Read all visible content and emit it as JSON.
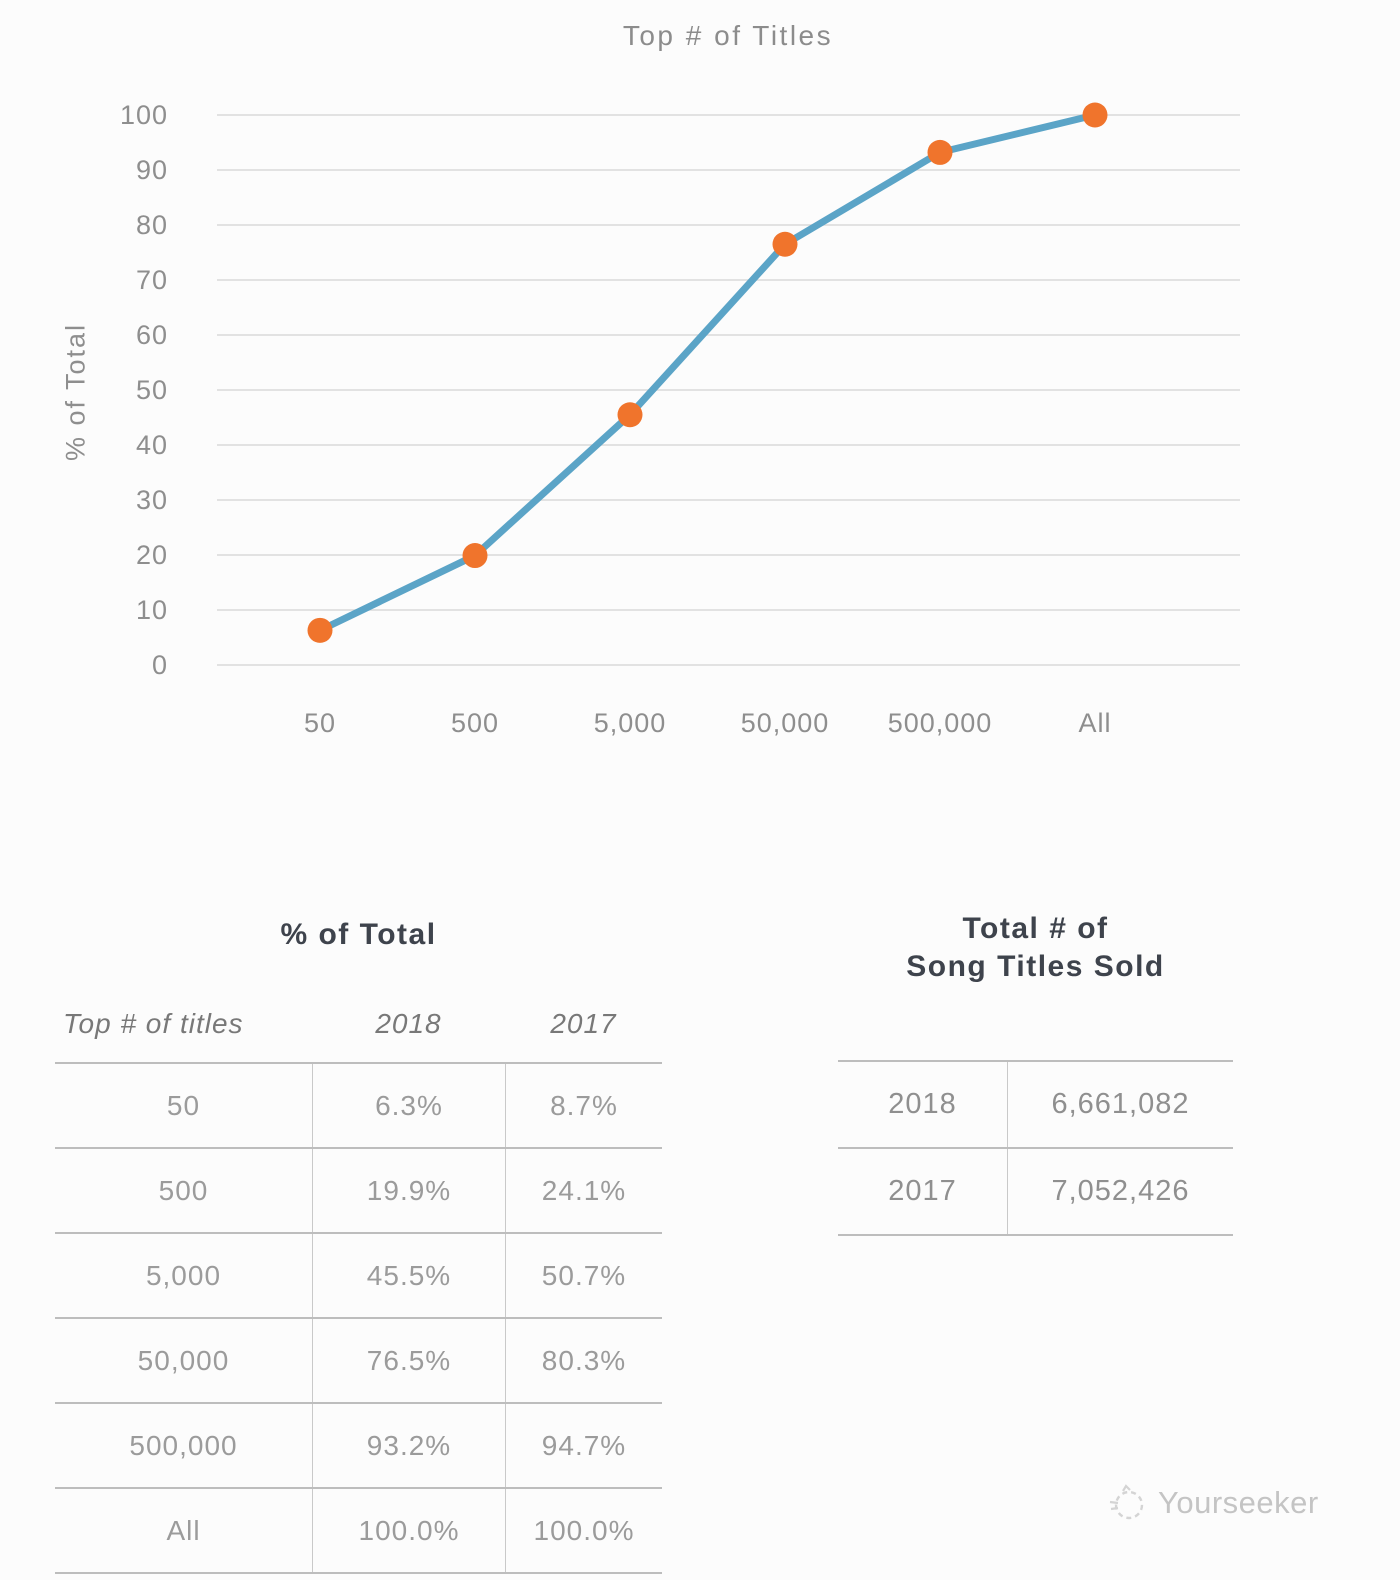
{
  "chart_data": {
    "type": "line",
    "title": "Top # of Titles",
    "ylabel": "% of Total",
    "xlabel": "",
    "categories": [
      "50",
      "500",
      "5,000",
      "50,000",
      "500,000",
      "All"
    ],
    "series": [
      {
        "name": "2018",
        "values": [
          6.3,
          19.9,
          45.5,
          76.5,
          93.2,
          100.0
        ]
      }
    ],
    "ylim": [
      0,
      100
    ],
    "yticks": [
      0,
      10,
      20,
      30,
      40,
      50,
      60,
      70,
      80,
      90,
      100
    ],
    "grid": true,
    "legend_position": "none",
    "line_color": "#5BA4C7",
    "marker_color": "#F0742C",
    "grid_color": "#D9D9D9",
    "axis_text_color": "#8E8E8E"
  },
  "tables": {
    "percent_of_total": {
      "title": "% of Total",
      "columns": [
        "Top # of titles",
        "2018",
        "2017"
      ],
      "rows": [
        [
          "50",
          "6.3%",
          "8.7%"
        ],
        [
          "500",
          "19.9%",
          "24.1%"
        ],
        [
          "5,000",
          "45.5%",
          "50.7%"
        ],
        [
          "50,000",
          "76.5%",
          "80.3%"
        ],
        [
          "500,000",
          "93.2%",
          "94.7%"
        ],
        [
          "All",
          "100.0%",
          "100.0%"
        ]
      ]
    },
    "total_titles_sold": {
      "title_line1": "Total # of",
      "title_line2": "Song Titles Sold",
      "rows": [
        [
          "2018",
          "6,661,082"
        ],
        [
          "2017",
          "7,052,426"
        ]
      ]
    }
  },
  "watermark": {
    "label": "Yourseeker"
  }
}
